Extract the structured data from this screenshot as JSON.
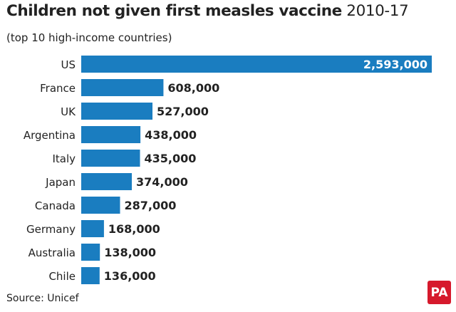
{
  "header": {
    "title_main": "Children not given first measles vaccine",
    "title_years": "2010-17",
    "subtitle": "(top 10 high-income countries)"
  },
  "footer": {
    "source": "Source: Unicef",
    "logo_text": "PA"
  },
  "colors": {
    "bar": "#1a7dc0",
    "logo": "#d6192c",
    "text": "#222222"
  },
  "chart_data": {
    "type": "bar",
    "orientation": "horizontal",
    "categories": [
      "US",
      "France",
      "UK",
      "Argentina",
      "Italy",
      "Japan",
      "Canada",
      "Germany",
      "Australia",
      "Chile"
    ],
    "values": [
      2593000,
      608000,
      527000,
      438000,
      435000,
      374000,
      287000,
      168000,
      138000,
      136000
    ],
    "value_labels": [
      "2,593,000",
      "608,000",
      "527,000",
      "438,000",
      "435,000",
      "374,000",
      "287,000",
      "168,000",
      "138,000",
      "136,000"
    ],
    "title": "Children not given first measles vaccine 2010-17",
    "subtitle": "(top 10 high-income countries)",
    "xlim": [
      0,
      2593000
    ],
    "grid": false,
    "legend": "none"
  }
}
